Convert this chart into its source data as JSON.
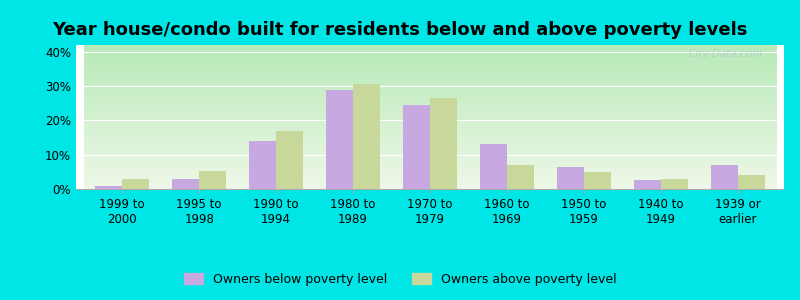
{
  "title": "Year house/condo built for residents below and above poverty levels",
  "categories": [
    "1999 to\n2000",
    "1995 to\n1998",
    "1990 to\n1994",
    "1980 to\n1989",
    "1970 to\n1979",
    "1960 to\n1969",
    "1950 to\n1959",
    "1940 to\n1949",
    "1939 or\nearlier"
  ],
  "below_poverty": [
    1.0,
    3.0,
    14.0,
    29.0,
    24.5,
    13.0,
    6.5,
    2.5,
    7.0
  ],
  "above_poverty": [
    3.0,
    5.2,
    17.0,
    30.5,
    26.5,
    7.0,
    5.0,
    3.0,
    4.0
  ],
  "below_color": "#c8a8e0",
  "above_color": "#c8d89a",
  "background_top": "#b8eab8",
  "background_bottom": "#eef8e8",
  "ylim": [
    0,
    42
  ],
  "yticks": [
    0,
    10,
    20,
    30,
    40
  ],
  "ytick_labels": [
    "0%",
    "10%",
    "20%",
    "30%",
    "40%"
  ],
  "bar_width": 0.35,
  "legend_below": "Owners below poverty level",
  "legend_above": "Owners above poverty level",
  "outer_bg": "#00e5e5",
  "title_fontsize": 13,
  "tick_fontsize": 8.5,
  "legend_fontsize": 9
}
